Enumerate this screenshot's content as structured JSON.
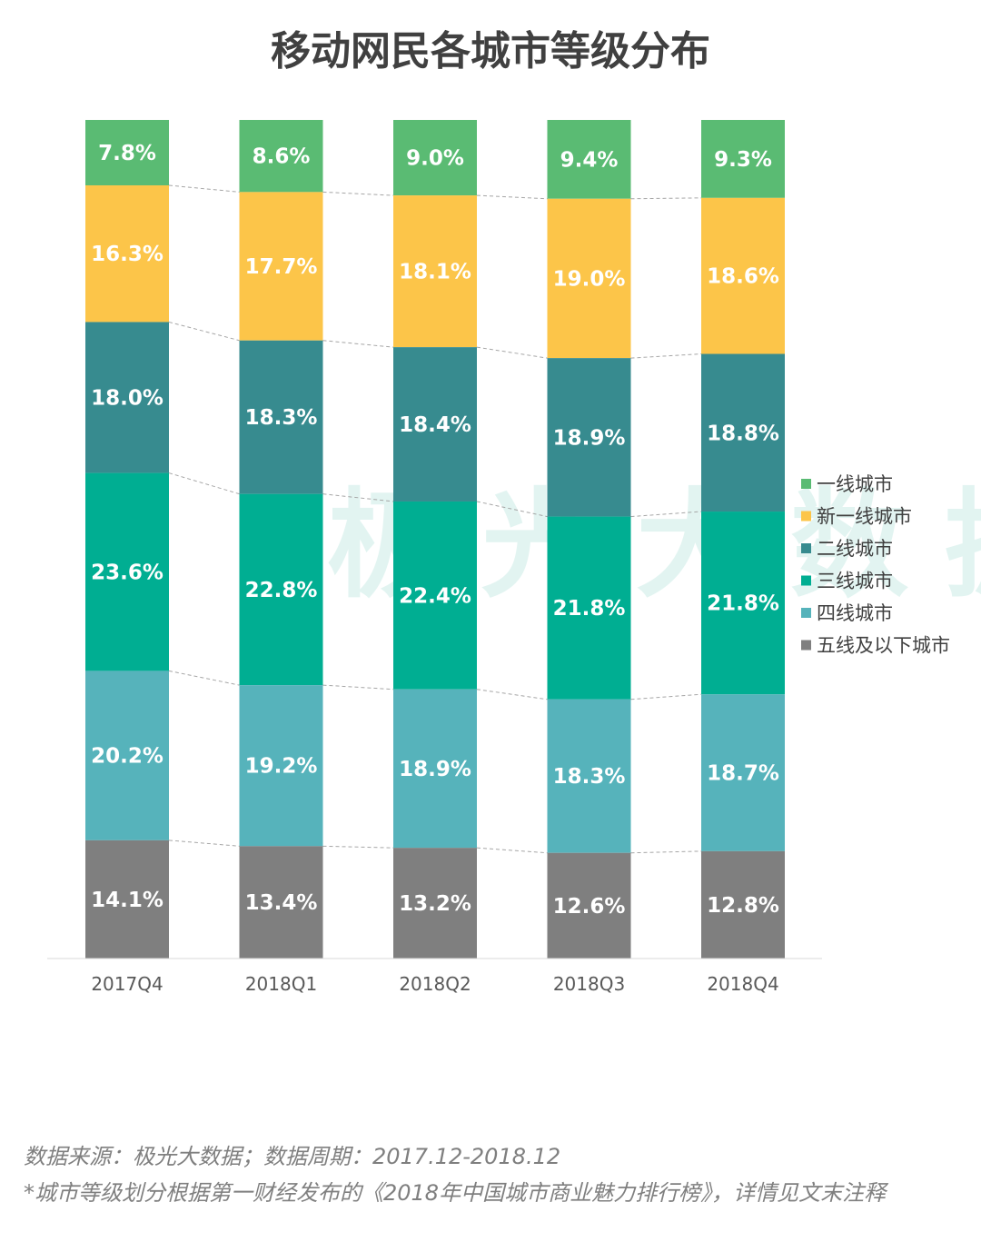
{
  "chart_data": {
    "type": "bar",
    "stacked": true,
    "normalized": true,
    "title": "移动网民各城市等级分布",
    "categories": [
      "2017Q4",
      "2018Q1",
      "2018Q2",
      "2018Q3",
      "2018Q4"
    ],
    "series": [
      {
        "name": "一线城市",
        "color": "#5abb73",
        "values": [
          7.8,
          8.6,
          9.0,
          9.4,
          9.3
        ],
        "labels": [
          "7.8%",
          "8.6%",
          "9.0%",
          "9.4%",
          "9.3%"
        ]
      },
      {
        "name": "新一线城市",
        "color": "#fcc549",
        "values": [
          16.3,
          17.7,
          18.1,
          19.0,
          18.6
        ],
        "labels": [
          "16.3%",
          "17.7%",
          "18.1%",
          "19.0%",
          "18.6%"
        ]
      },
      {
        "name": "二线城市",
        "color": "#378b8f",
        "values": [
          18.0,
          18.3,
          18.4,
          18.9,
          18.8
        ],
        "labels": [
          "18.0%",
          "18.3%",
          "18.4%",
          "18.9%",
          "18.8%"
        ]
      },
      {
        "name": "三线城市",
        "color": "#00ae92",
        "values": [
          23.6,
          22.8,
          22.4,
          21.8,
          21.8
        ],
        "labels": [
          "23.6%",
          "22.8%",
          "22.4%",
          "21.8%",
          "21.8%"
        ]
      },
      {
        "name": "四线城市",
        "color": "#56b3bb",
        "values": [
          20.2,
          19.2,
          18.9,
          18.3,
          18.7
        ],
        "labels": [
          "20.2%",
          "19.2%",
          "18.9%",
          "18.3%",
          "18.7%"
        ]
      },
      {
        "name": "五线及以下城市",
        "color": "#7f7f7f",
        "values": [
          14.1,
          13.4,
          13.2,
          12.6,
          12.8
        ],
        "labels": [
          "14.1%",
          "13.4%",
          "13.2%",
          "12.6%",
          "12.8%"
        ]
      }
    ],
    "legend_position": "right",
    "series_lines": "dashed connectors between segment boundaries"
  },
  "watermark": "极光大数据",
  "notes": {
    "source": "数据来源：极光大数据；数据周期：2017.12-2018.12",
    "definition": "*城市等级划分根据第一财经发布的《2018年中国城市商业魅力排行榜》，详情见文末注释"
  }
}
